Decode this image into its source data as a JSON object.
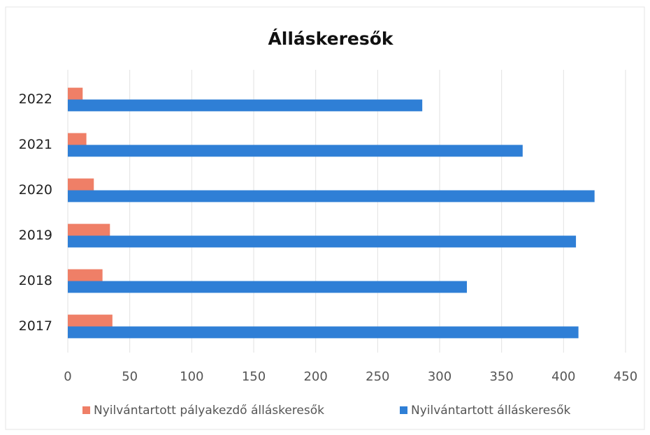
{
  "chart_data": {
    "type": "hbar",
    "title": "Álláskeresők",
    "categories": [
      "2017",
      "2018",
      "2019",
      "2020",
      "2021",
      "2022"
    ],
    "series": [
      {
        "name": "Nyilvántartott pályakezdő álláskeresők",
        "color": "#ef7f67",
        "values": [
          36,
          28,
          34,
          21,
          15,
          12
        ]
      },
      {
        "name": "Nyilvántartott álláskeresők",
        "color": "#2f7fd6",
        "values": [
          412,
          322,
          410,
          425,
          367,
          286
        ]
      }
    ],
    "xlim": [
      0,
      450
    ],
    "xticks": [
      0,
      50,
      100,
      150,
      200,
      250,
      300,
      350,
      400,
      450
    ],
    "grid": true,
    "legend": "bottom"
  }
}
